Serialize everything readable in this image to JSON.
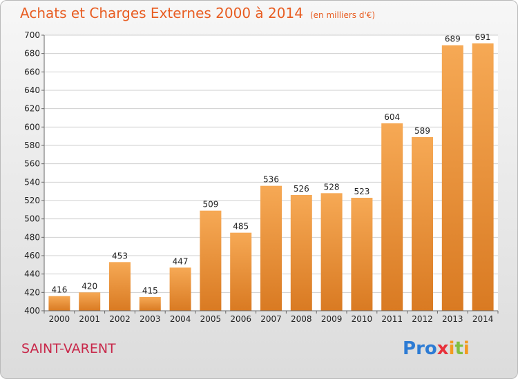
{
  "title": "Achats et Charges Externes 2000 à 2014",
  "unit_label": "(en milliers d'€)",
  "city": "SAINT-VARENT",
  "logo": {
    "letters": [
      {
        "ch": "P",
        "color": "#2c7bd4"
      },
      {
        "ch": "r",
        "color": "#2c7bd4"
      },
      {
        "ch": "o",
        "color": "#2c7bd4"
      },
      {
        "ch": "x",
        "color": "#e8303a"
      },
      {
        "ch": "i",
        "color": "#f39a1f"
      },
      {
        "ch": "t",
        "color": "#7fbf3f"
      },
      {
        "ch": "i",
        "color": "#f39a1f"
      }
    ]
  },
  "chart_data": {
    "type": "bar",
    "categories": [
      "2000",
      "2001",
      "2002",
      "2003",
      "2004",
      "2005",
      "2006",
      "2007",
      "2008",
      "2009",
      "2010",
      "2011",
      "2012",
      "2013",
      "2014"
    ],
    "values": [
      416,
      420,
      453,
      415,
      447,
      509,
      485,
      536,
      526,
      528,
      523,
      604,
      589,
      689,
      691
    ],
    "ylim": [
      400,
      700
    ],
    "yticks": [
      400,
      420,
      440,
      460,
      480,
      500,
      520,
      540,
      560,
      580,
      600,
      620,
      640,
      660,
      680,
      700
    ],
    "grid": true,
    "bar_color_light": "#f6a955",
    "bar_color_dark": "#d97a22"
  }
}
